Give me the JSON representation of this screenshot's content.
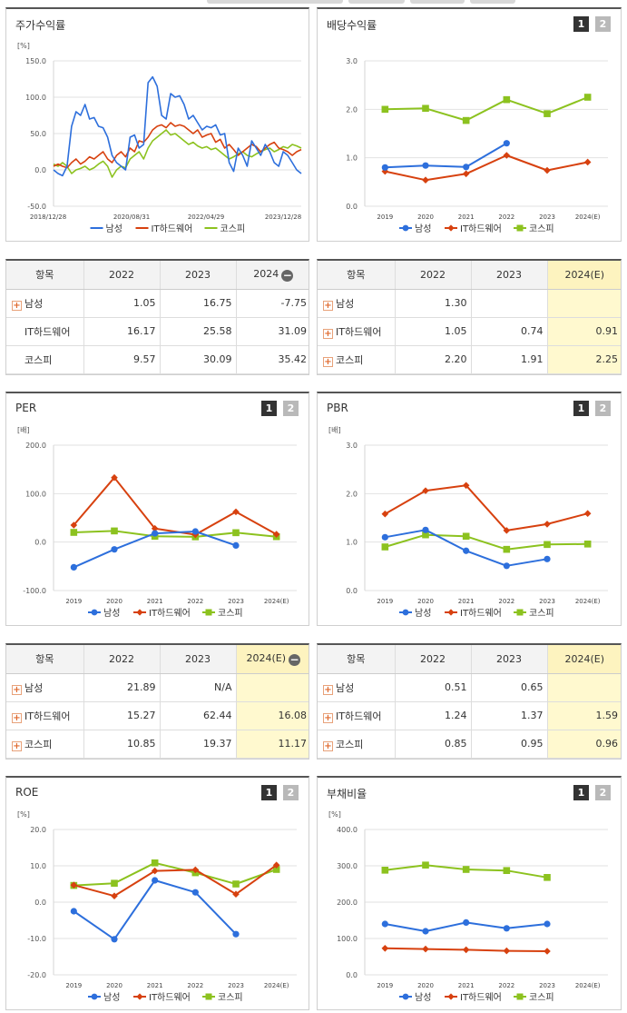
{
  "legend": [
    "남성",
    "IT하드웨어",
    "코스피"
  ],
  "colors": {
    "s1": "#2d6fdc",
    "s2": "#d7410f",
    "s3": "#8cc21f"
  },
  "panels": [
    {
      "id": "stock",
      "title": "주가수익률",
      "unit": "[%]",
      "paging": false
    },
    {
      "id": "div",
      "title": "배당수익률",
      "unit": "",
      "paging": true
    },
    {
      "id": "per",
      "title": "PER",
      "unit": "[배]",
      "paging": true
    },
    {
      "id": "pbr",
      "title": "PBR",
      "unit": "[배]",
      "paging": true
    },
    {
      "id": "roe",
      "title": "ROE",
      "unit": "[%]",
      "paging": true
    },
    {
      "id": "debt",
      "title": "부채비율",
      "unit": "[%]",
      "paging": true
    }
  ],
  "paging_labels": [
    "1",
    "2"
  ],
  "chart_data": [
    {
      "id": "stock",
      "type": "line",
      "title": "주가수익률",
      "ylabel": "[%]",
      "ylim": [
        -50,
        150
      ],
      "yticks": [
        "150.0",
        "100.0",
        "50.0",
        "0.0",
        "-50.0"
      ],
      "xticks": [
        "2018/12/28",
        "2020/08/31",
        "2022/04/29",
        "2023/12/28"
      ],
      "series": [
        {
          "name": "남성",
          "values": [
            0,
            -5,
            -8,
            5,
            60,
            80,
            75,
            90,
            70,
            72,
            60,
            58,
            45,
            20,
            10,
            5,
            0,
            45,
            48,
            30,
            35,
            120,
            128,
            115,
            75,
            70,
            105,
            100,
            102,
            90,
            70,
            75,
            65,
            55,
            60,
            58,
            62,
            48,
            50,
            10,
            -2,
            30,
            20,
            5,
            40,
            30,
            20,
            35,
            25,
            10,
            5,
            25,
            20,
            10,
            0,
            -5
          ]
        },
        {
          "name": "IT하드웨어",
          "values": [
            5,
            8,
            5,
            3,
            10,
            15,
            8,
            12,
            18,
            15,
            20,
            25,
            15,
            10,
            20,
            25,
            18,
            30,
            25,
            40,
            38,
            45,
            55,
            60,
            62,
            58,
            65,
            60,
            62,
            60,
            55,
            50,
            55,
            45,
            48,
            50,
            38,
            42,
            30,
            35,
            28,
            20,
            25,
            30,
            35,
            32,
            25,
            30,
            35,
            38,
            30,
            28,
            25,
            20,
            25,
            28
          ]
        },
        {
          "name": "코스피",
          "values": [
            8,
            5,
            10,
            5,
            -5,
            0,
            2,
            5,
            0,
            3,
            8,
            12,
            5,
            -10,
            0,
            5,
            3,
            15,
            20,
            25,
            15,
            30,
            40,
            45,
            50,
            55,
            48,
            50,
            45,
            40,
            35,
            38,
            33,
            30,
            32,
            28,
            30,
            25,
            20,
            15,
            18,
            22,
            25,
            20,
            18,
            22,
            25,
            28,
            30,
            25,
            28,
            32,
            30,
            35,
            33,
            30
          ]
        }
      ]
    },
    {
      "id": "div",
      "type": "line",
      "title": "배당수익률",
      "ylim": [
        0,
        3
      ],
      "yticks": [
        "3.0",
        "2.0",
        "1.0",
        "0.0"
      ],
      "categories": [
        "2019",
        "2020",
        "2021",
        "2022",
        "2023",
        "2024(E)"
      ],
      "series": [
        {
          "name": "남성",
          "values": [
            0.8,
            0.84,
            0.81,
            1.3,
            null,
            null
          ]
        },
        {
          "name": "IT하드웨어",
          "values": [
            0.72,
            0.54,
            0.67,
            1.05,
            0.74,
            0.91
          ]
        },
        {
          "name": "코스피",
          "values": [
            2.0,
            2.02,
            1.77,
            2.2,
            1.91,
            2.25
          ]
        }
      ]
    },
    {
      "id": "per",
      "type": "line",
      "title": "PER",
      "ylabel": "[배]",
      "ylim": [
        -100,
        200
      ],
      "yticks": [
        "200.0",
        "100.0",
        "0.0",
        "-100.0"
      ],
      "categories": [
        "2019",
        "2020",
        "2021",
        "2022",
        "2023",
        "2024(E)"
      ],
      "series": [
        {
          "name": "남성",
          "values": [
            -52,
            -15,
            18,
            21.89,
            -7,
            null
          ]
        },
        {
          "name": "IT하드웨어",
          "values": [
            35,
            133,
            28,
            15.27,
            62.44,
            16.08
          ]
        },
        {
          "name": "코스피",
          "values": [
            20,
            23,
            12,
            10.85,
            19.37,
            11.17
          ]
        }
      ]
    },
    {
      "id": "pbr",
      "type": "line",
      "title": "PBR",
      "ylabel": "[배]",
      "ylim": [
        0,
        3
      ],
      "yticks": [
        "3.0",
        "2.0",
        "1.0",
        "0.0"
      ],
      "categories": [
        "2019",
        "2020",
        "2021",
        "2022",
        "2023",
        "2024(E)"
      ],
      "series": [
        {
          "name": "남성",
          "values": [
            1.1,
            1.25,
            0.82,
            0.51,
            0.65,
            null
          ]
        },
        {
          "name": "IT하드웨어",
          "values": [
            1.58,
            2.06,
            2.17,
            1.24,
            1.37,
            1.59
          ]
        },
        {
          "name": "코스피",
          "values": [
            0.9,
            1.15,
            1.12,
            0.85,
            0.95,
            0.96
          ]
        }
      ]
    },
    {
      "id": "roe",
      "type": "line",
      "title": "ROE",
      "ylabel": "[%]",
      "ylim": [
        -20,
        20
      ],
      "yticks": [
        "20.0",
        "10.0",
        "0.0",
        "-10.0",
        "-20.0"
      ],
      "categories": [
        "2019",
        "2020",
        "2021",
        "2022",
        "2023",
        "2024(E)"
      ],
      "series": [
        {
          "name": "남성",
          "values": [
            -2.5,
            -10.2,
            6.0,
            2.7,
            -8.8,
            null
          ]
        },
        {
          "name": "IT하드웨어",
          "values": [
            4.7,
            1.7,
            8.6,
            8.9,
            2.2,
            10.2
          ]
        },
        {
          "name": "코스피",
          "values": [
            4.6,
            5.2,
            10.8,
            8.1,
            5.0,
            9.0
          ]
        }
      ]
    },
    {
      "id": "debt",
      "type": "line",
      "title": "부채비율",
      "ylabel": "[%]",
      "ylim": [
        0,
        400
      ],
      "yticks": [
        "400.0",
        "300.0",
        "200.0",
        "100.0",
        "0.0"
      ],
      "categories": [
        "2019",
        "2020",
        "2021",
        "2022",
        "2023",
        "2024(E)"
      ],
      "series": [
        {
          "name": "남성",
          "values": [
            140,
            120,
            144,
            128,
            140,
            null
          ]
        },
        {
          "name": "IT하드웨어",
          "values": [
            73,
            71,
            69,
            66,
            65,
            null
          ]
        },
        {
          "name": "코스피",
          "values": [
            288,
            302,
            290,
            287,
            268,
            null
          ]
        }
      ]
    }
  ],
  "tables": [
    {
      "id": "t-stock",
      "head": [
        "항목",
        "2022",
        "2023",
        "2024"
      ],
      "minus": true,
      "estimate_col": false,
      "rows": [
        [
          "남성",
          "1.05",
          "16.75",
          "-7.75"
        ],
        [
          "IT하드웨어",
          "16.17",
          "25.58",
          "31.09"
        ],
        [
          "코스피",
          "9.57",
          "30.09",
          "35.42"
        ]
      ],
      "plus": [
        true,
        false,
        false
      ]
    },
    {
      "id": "t-div",
      "head": [
        "항목",
        "2022",
        "2023",
        "2024(E)"
      ],
      "minus": false,
      "estimate_col": true,
      "rows": [
        [
          "남성",
          "1.30",
          "",
          ""
        ],
        [
          "IT하드웨어",
          "1.05",
          "0.74",
          "0.91"
        ],
        [
          "코스피",
          "2.20",
          "1.91",
          "2.25"
        ]
      ],
      "plus": [
        true,
        true,
        true
      ]
    },
    {
      "id": "t-per",
      "head": [
        "항목",
        "2022",
        "2023",
        "2024(E)"
      ],
      "minus": true,
      "estimate_col": true,
      "rows": [
        [
          "남성",
          "21.89",
          "N/A",
          ""
        ],
        [
          "IT하드웨어",
          "15.27",
          "62.44",
          "16.08"
        ],
        [
          "코스피",
          "10.85",
          "19.37",
          "11.17"
        ]
      ],
      "plus": [
        true,
        true,
        true
      ]
    },
    {
      "id": "t-pbr",
      "head": [
        "항목",
        "2022",
        "2023",
        "2024(E)"
      ],
      "minus": false,
      "estimate_col": true,
      "rows": [
        [
          "남성",
          "0.51",
          "0.65",
          ""
        ],
        [
          "IT하드웨어",
          "1.24",
          "1.37",
          "1.59"
        ],
        [
          "코스피",
          "0.85",
          "0.95",
          "0.96"
        ]
      ],
      "plus": [
        true,
        true,
        true
      ]
    }
  ]
}
